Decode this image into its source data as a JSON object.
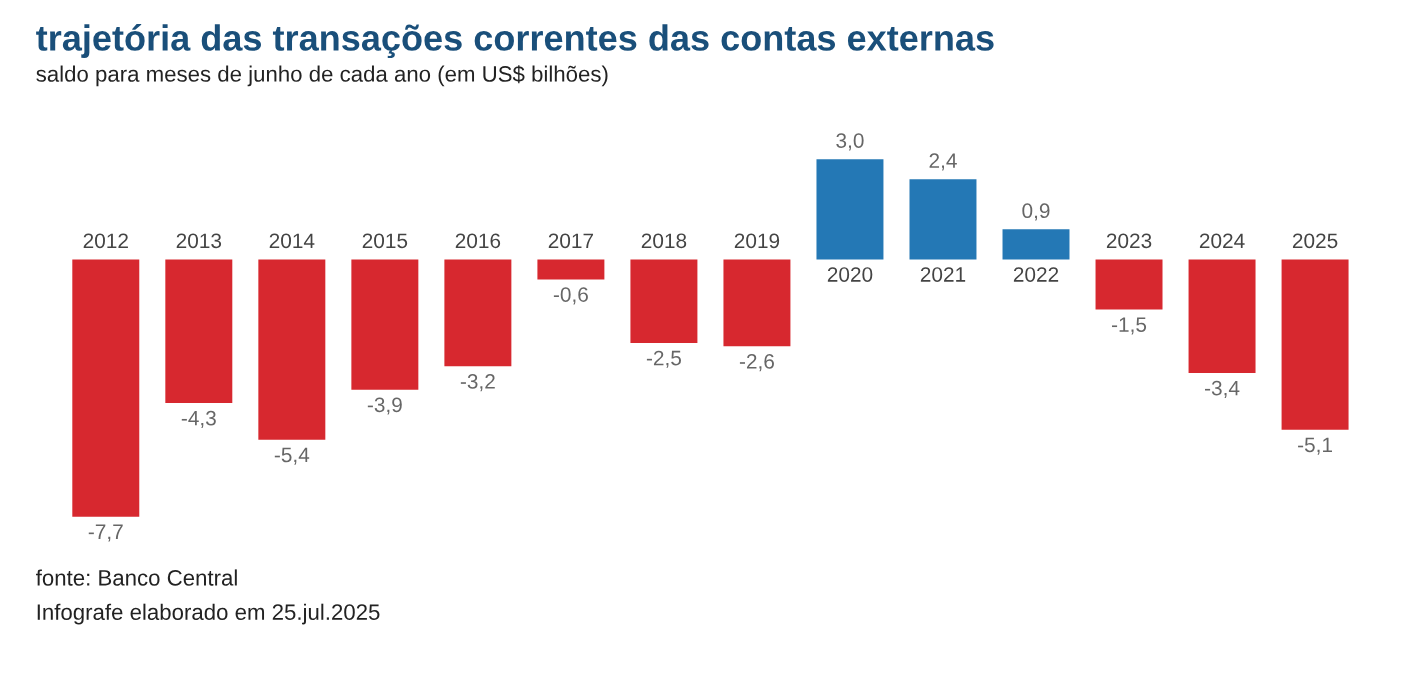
{
  "chart_data": {
    "type": "bar",
    "title": "trajetória das transações correntes das contas externas",
    "subtitle": "saldo para meses de junho de cada ano (em US$ bilhões)",
    "categories": [
      "2012",
      "2013",
      "2014",
      "2015",
      "2016",
      "2017",
      "2018",
      "2019",
      "2020",
      "2021",
      "2022",
      "2023",
      "2024",
      "2025"
    ],
    "values": [
      -7.7,
      -4.3,
      -5.4,
      -3.9,
      -3.2,
      -0.6,
      -2.5,
      -2.6,
      3.0,
      2.4,
      0.9,
      -1.5,
      -3.4,
      -5.1
    ],
    "value_labels": [
      "-7,7",
      "-4,3",
      "-5,4",
      "-3,9",
      "-3,2",
      "-0,6",
      "-2,5",
      "-2,6",
      "3,0",
      "2,4",
      "0,9",
      "-1,5",
      "-3,4",
      "-5,1"
    ],
    "colors": [
      "#d7282f",
      "#d7282f",
      "#d7282f",
      "#d7282f",
      "#d7282f",
      "#d7282f",
      "#d7282f",
      "#d7282f",
      "#2478b5",
      "#2478b5",
      "#2478b5",
      "#d7282f",
      "#d7282f",
      "#d7282f"
    ],
    "annotations": [
      "fonte: Banco Central",
      "Infografe elaborado em 25.jul.2025"
    ]
  }
}
